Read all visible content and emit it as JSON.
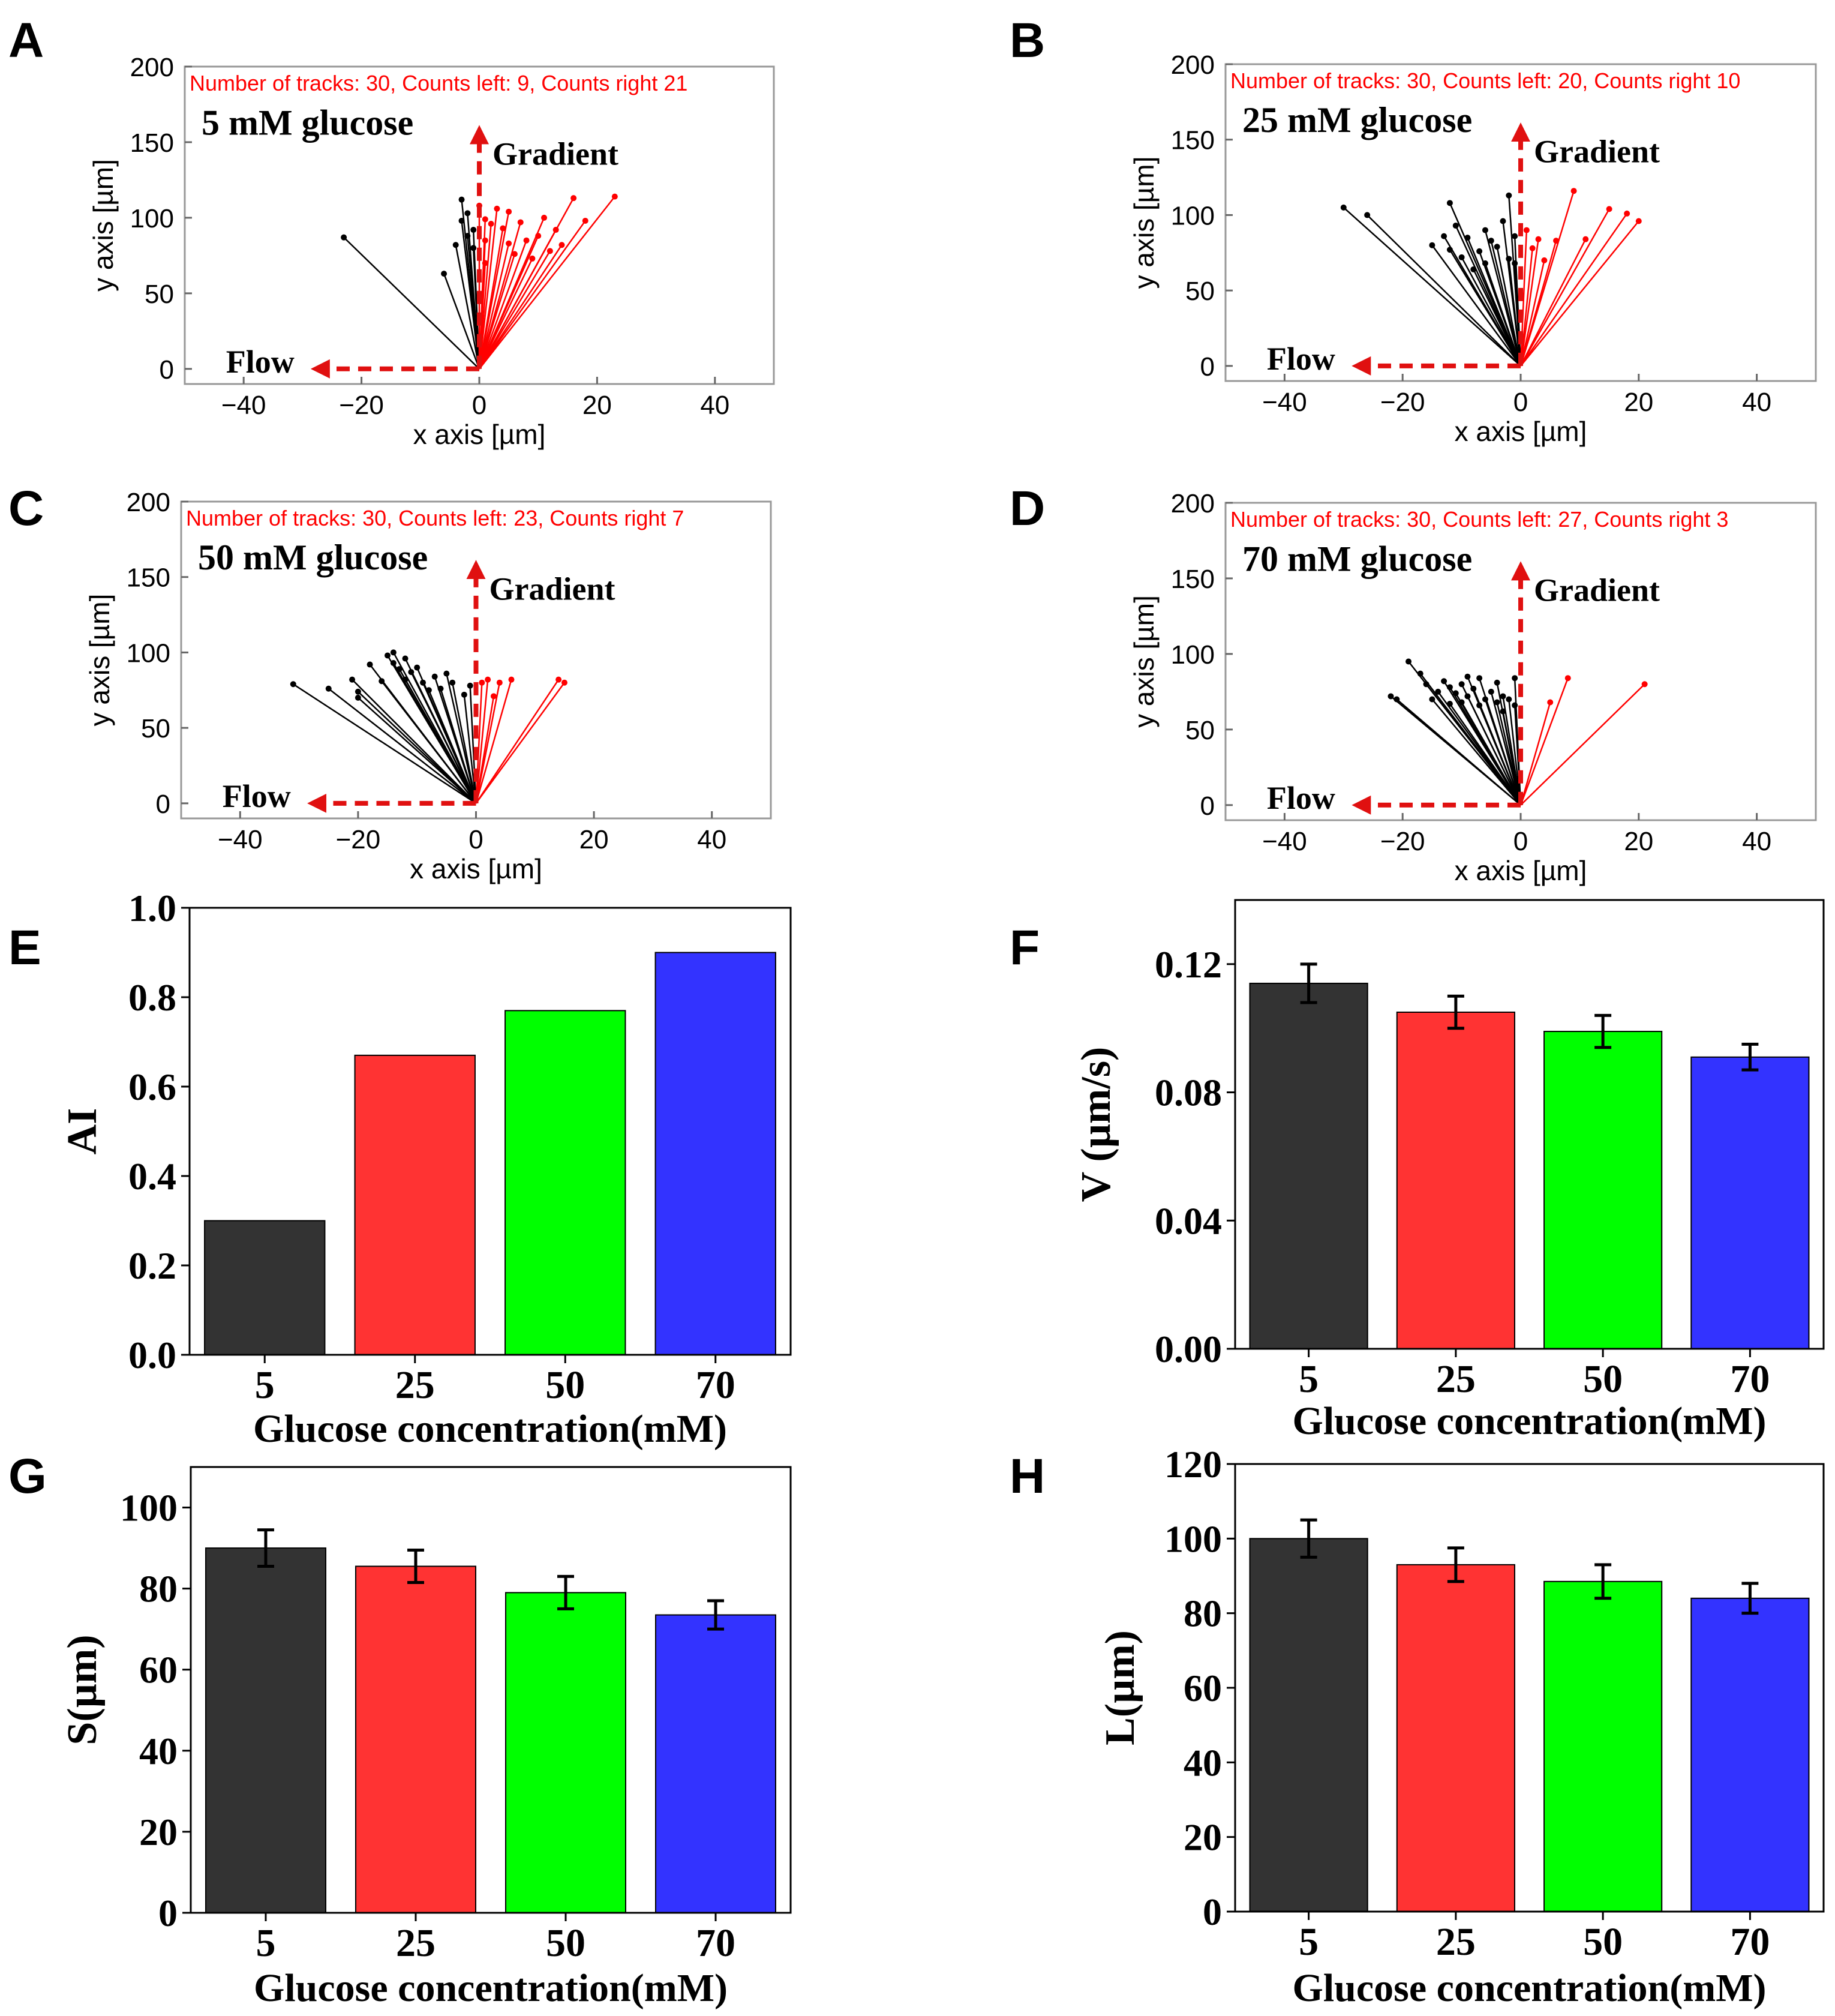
{
  "colors": {
    "track_left": "#000000",
    "track_right": "#ff0000",
    "arrow": "#e01010",
    "bars": [
      "#333333",
      "#ff3333",
      "#00ff00",
      "#3333ff"
    ],
    "frame": "#000000"
  },
  "chart_data": [
    {
      "id": "A",
      "type": "scatter",
      "panel_letter": "A",
      "title": "Number of tracks: 30, Counts left: 9, Counts right 21",
      "glucose_label": "5 mM glucose",
      "gradient_label": "Gradient",
      "flow_label": "Flow",
      "xlabel": "x axis [µm]",
      "ylabel": "y axis [µm]",
      "xlim": [
        -50,
        50
      ],
      "ylim": [
        -10,
        200
      ],
      "xticks": [
        -40,
        -20,
        0,
        20,
        40
      ],
      "yticks": [
        0,
        50,
        100,
        150,
        200
      ],
      "tracks_left": [
        [
          -23,
          87
        ],
        [
          -6,
          63
        ],
        [
          -4,
          82
        ],
        [
          -3,
          112
        ],
        [
          -3,
          98
        ],
        [
          -2,
          103
        ],
        [
          -2,
          88
        ],
        [
          -1,
          92
        ],
        [
          -1,
          80
        ]
      ],
      "tracks_right": [
        [
          0,
          108
        ],
        [
          1,
          70
        ],
        [
          1,
          85
        ],
        [
          1,
          99
        ],
        [
          2,
          96
        ],
        [
          3,
          106
        ],
        [
          4,
          93
        ],
        [
          5,
          104
        ],
        [
          5,
          83
        ],
        [
          6,
          76
        ],
        [
          7,
          97
        ],
        [
          8,
          85
        ],
        [
          9,
          73
        ],
        [
          10,
          88
        ],
        [
          11,
          100
        ],
        [
          12,
          78
        ],
        [
          13,
          92
        ],
        [
          14,
          82
        ],
        [
          16,
          113
        ],
        [
          18,
          98
        ],
        [
          23,
          114
        ]
      ]
    },
    {
      "id": "B",
      "type": "scatter",
      "panel_letter": "B",
      "title": "Number of tracks: 30, Counts left: 20, Counts right 10",
      "glucose_label": "25 mM glucose",
      "gradient_label": "Gradient",
      "flow_label": "Flow",
      "xlabel": "x axis [µm]",
      "ylabel": "y axis [µm]",
      "xlim": [
        -50,
        50
      ],
      "ylim": [
        -10,
        200
      ],
      "xticks": [
        -40,
        -20,
        0,
        20,
        40
      ],
      "yticks": [
        0,
        50,
        100,
        150,
        200
      ],
      "tracks_left": [
        [
          -30,
          105
        ],
        [
          -26,
          100
        ],
        [
          -15,
          80
        ],
        [
          -13,
          86
        ],
        [
          -12,
          108
        ],
        [
          -12,
          77
        ],
        [
          -11,
          93
        ],
        [
          -10,
          72
        ],
        [
          -9,
          85
        ],
        [
          -8,
          64
        ],
        [
          -7,
          76
        ],
        [
          -6,
          90
        ],
        [
          -6,
          68
        ],
        [
          -5,
          83
        ],
        [
          -4,
          79
        ],
        [
          -3,
          96
        ],
        [
          -2,
          71
        ],
        [
          -2,
          113
        ],
        [
          -1,
          86
        ],
        [
          -1,
          68
        ]
      ],
      "tracks_right": [
        [
          1,
          90
        ],
        [
          2,
          78
        ],
        [
          3,
          84
        ],
        [
          4,
          70
        ],
        [
          6,
          83
        ],
        [
          9,
          116
        ],
        [
          11,
          84
        ],
        [
          15,
          104
        ],
        [
          18,
          101
        ],
        [
          20,
          96
        ]
      ]
    },
    {
      "id": "C",
      "type": "scatter",
      "panel_letter": "C",
      "title": "Number of tracks: 30, Counts left: 23, Counts right 7",
      "glucose_label": "50 mM glucose",
      "gradient_label": "Gradient",
      "flow_label": "Flow",
      "xlabel": "x axis [µm]",
      "ylabel": "y axis [µm]",
      "xlim": [
        -50,
        50
      ],
      "ylim": [
        -10,
        200
      ],
      "xticks": [
        -40,
        -20,
        0,
        20,
        40
      ],
      "yticks": [
        0,
        50,
        100,
        150,
        200
      ],
      "tracks_left": [
        [
          -31,
          79
        ],
        [
          -25,
          76
        ],
        [
          -21,
          82
        ],
        [
          -20,
          70
        ],
        [
          -20,
          74
        ],
        [
          -18,
          92
        ],
        [
          -16,
          81
        ],
        [
          -15,
          98
        ],
        [
          -14,
          100
        ],
        [
          -14,
          93
        ],
        [
          -13,
          89
        ],
        [
          -12,
          82
        ],
        [
          -12,
          96
        ],
        [
          -11,
          87
        ],
        [
          -10,
          90
        ],
        [
          -9,
          80
        ],
        [
          -8,
          75
        ],
        [
          -7,
          84
        ],
        [
          -6,
          76
        ],
        [
          -5,
          86
        ],
        [
          -4,
          80
        ],
        [
          -2,
          72
        ],
        [
          -1,
          78
        ]
      ],
      "tracks_right": [
        [
          1,
          80
        ],
        [
          2,
          82
        ],
        [
          3,
          71
        ],
        [
          4,
          80
        ],
        [
          6,
          82
        ],
        [
          14,
          82
        ],
        [
          15,
          80
        ]
      ]
    },
    {
      "id": "D",
      "type": "scatter",
      "panel_letter": "D",
      "title": "Number of tracks: 30, Counts left: 27, Counts right 3",
      "glucose_label": "70 mM glucose",
      "gradient_label": "Gradient",
      "flow_label": "Flow",
      "xlabel": "x axis [µm]",
      "ylabel": "y axis [µm]",
      "xlim": [
        -50,
        50
      ],
      "ylim": [
        -10,
        200
      ],
      "xticks": [
        -40,
        -20,
        0,
        20,
        40
      ],
      "yticks": [
        0,
        50,
        100,
        150,
        200
      ],
      "tracks_left": [
        [
          -22,
          72
        ],
        [
          -21,
          70
        ],
        [
          -19,
          95
        ],
        [
          -17,
          87
        ],
        [
          -16,
          80
        ],
        [
          -15,
          70
        ],
        [
          -14,
          75
        ],
        [
          -13,
          82
        ],
        [
          -12,
          78
        ],
        [
          -12,
          67
        ],
        [
          -11,
          74
        ],
        [
          -10,
          80
        ],
        [
          -10,
          68
        ],
        [
          -9,
          85
        ],
        [
          -9,
          72
        ],
        [
          -8,
          77
        ],
        [
          -7,
          84
        ],
        [
          -7,
          66
        ],
        [
          -6,
          70
        ],
        [
          -5,
          75
        ],
        [
          -4,
          81
        ],
        [
          -4,
          68
        ],
        [
          -3,
          72
        ],
        [
          -3,
          62
        ],
        [
          -2,
          70
        ],
        [
          -1,
          84
        ],
        [
          -1,
          66
        ]
      ],
      "tracks_right": [
        [
          5,
          68
        ],
        [
          8,
          84
        ],
        [
          21,
          80
        ]
      ]
    },
    {
      "id": "E",
      "type": "bar",
      "panel_letter": "E",
      "categories": [
        "5",
        "25",
        "50",
        "70"
      ],
      "values": [
        0.3,
        0.67,
        0.77,
        0.9
      ],
      "errors": null,
      "xlabel": "Glucose concentration(mM)",
      "ylabel": "AI",
      "ylim": [
        0,
        1.0
      ],
      "yticks": [
        "0.0",
        "0.2",
        "0.4",
        "0.6",
        "0.8",
        "1.0"
      ]
    },
    {
      "id": "F",
      "type": "bar",
      "panel_letter": "F",
      "categories": [
        "5",
        "25",
        "50",
        "70"
      ],
      "values": [
        0.114,
        0.105,
        0.099,
        0.091
      ],
      "errors": [
        0.006,
        0.005,
        0.005,
        0.004
      ],
      "xlabel": "Glucose concentration(mM)",
      "ylabel": "V (µm/s)",
      "ylim": [
        0,
        0.14
      ],
      "yticks": [
        "0.00",
        "0.04",
        "0.08",
        "0.12"
      ]
    },
    {
      "id": "G",
      "type": "bar",
      "panel_letter": "G",
      "categories": [
        "5",
        "25",
        "50",
        "70"
      ],
      "values": [
        90,
        85.5,
        79,
        73.5
      ],
      "errors": [
        4.5,
        4,
        4,
        3.5
      ],
      "xlabel": "Glucose concentration(mM)",
      "ylabel": "S(µm)",
      "ylim": [
        0,
        110
      ],
      "yticks": [
        "0",
        "20",
        "40",
        "60",
        "80",
        "100"
      ]
    },
    {
      "id": "H",
      "type": "bar",
      "panel_letter": "H",
      "categories": [
        "5",
        "25",
        "50",
        "70"
      ],
      "values": [
        100,
        93,
        88.5,
        84
      ],
      "errors": [
        5,
        4.5,
        4.5,
        4
      ],
      "xlabel": "Glucose concentration(mM)",
      "ylabel": "L(µm)",
      "ylim": [
        0,
        120
      ],
      "yticks": [
        "0",
        "20",
        "40",
        "60",
        "80",
        "100",
        "120"
      ]
    }
  ]
}
